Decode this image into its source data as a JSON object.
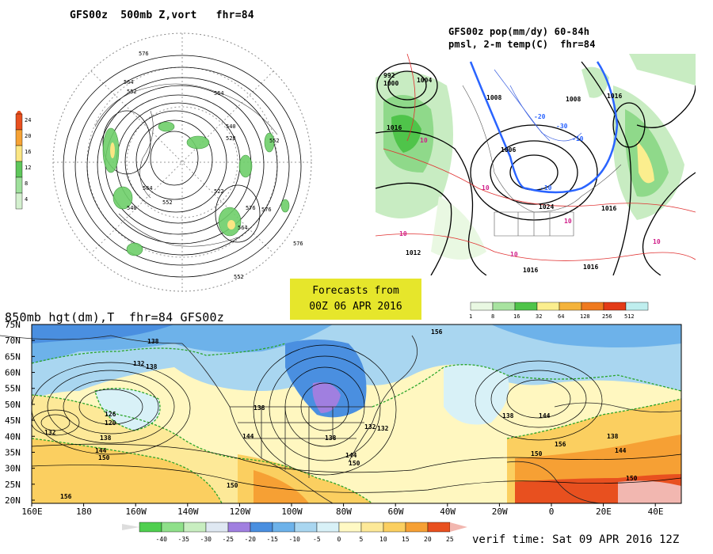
{
  "panels": {
    "vort": {
      "title": "GFS00z  500mb Z,vort   fhr=84",
      "colorbar_values": [
        "24",
        "20",
        "16",
        "12",
        "8",
        "4"
      ],
      "colorbar_colors": [
        "#e8501f",
        "#f6a234",
        "#fbe684",
        "#5fc75b",
        "#9fe09c",
        "#d4f0cf"
      ],
      "contour_labels": [
        "576",
        "564",
        "552",
        "540",
        "528",
        "522",
        "552",
        "564",
        "576",
        "564",
        "540",
        "552",
        "576",
        "564",
        "576",
        "552"
      ]
    },
    "precip": {
      "title_line1": "GFS00z pop(mm/dy) 60-84h",
      "title_line2": "pmsl, 2-m temp(C)  fhr=84",
      "pressure_labels": [
        "992",
        "1000",
        "1004",
        "1016",
        "1008",
        "1006",
        "1024",
        "1016",
        "1008",
        "1012",
        "1016",
        "1016",
        "1016"
      ],
      "temp_labels": [
        "10",
        "10",
        "10",
        "10",
        "10",
        "10",
        "-10",
        "-20",
        "-30",
        "-10"
      ],
      "colorbar_values": [
        "1",
        "8",
        "16",
        "32",
        "64",
        "128",
        "256",
        "512"
      ],
      "colorbar_colors": [
        "#e9f8e2",
        "#a8e3a0",
        "#4fc44a",
        "#fbee8e",
        "#f4b33b",
        "#ef7a1f",
        "#e33b17",
        "#bfeeee"
      ]
    },
    "center": {
      "line1": "Forecasts from",
      "line2": "00Z 06 APR 2016"
    },
    "hgt850": {
      "title": "850mb hgt(dm),T  fhr=84 GFS00z",
      "lat_labels": [
        "75N",
        "70N",
        "65N",
        "60N",
        "55N",
        "50N",
        "45N",
        "40N",
        "35N",
        "30N",
        "25N",
        "20N"
      ],
      "lon_labels": [
        "160E",
        "180",
        "160W",
        "140W",
        "120W",
        "100W",
        "80W",
        "60W",
        "40W",
        "20W",
        "0",
        "20E",
        "40E"
      ],
      "contour_labels": [
        "138",
        "132",
        "138",
        "126",
        "120",
        "132",
        "138",
        "144",
        "150",
        "156",
        "138",
        "144",
        "150",
        "138",
        "132",
        "144",
        "150",
        "156",
        "132",
        "138",
        "144",
        "150",
        "138",
        "150",
        "144",
        "156"
      ],
      "temp_scale_values": [
        "-40",
        "-35",
        "-30",
        "-25",
        "-20",
        "-15",
        "-10",
        "-5",
        "0",
        "5",
        "10",
        "15",
        "20",
        "25"
      ],
      "temp_scale_colors": [
        "#4fcf4f",
        "#8fe08a",
        "#c8eec0",
        "#dfe8f2",
        "#a07fe0",
        "#4a8fe0",
        "#6db2ea",
        "#a9d6f0",
        "#d8f1f7",
        "#fff9c4",
        "#fde998",
        "#fbcf60",
        "#f6a034",
        "#e8501f",
        "#f2b7b0"
      ],
      "verif_text": "verif time: Sat 09 APR 2016 12Z"
    }
  }
}
